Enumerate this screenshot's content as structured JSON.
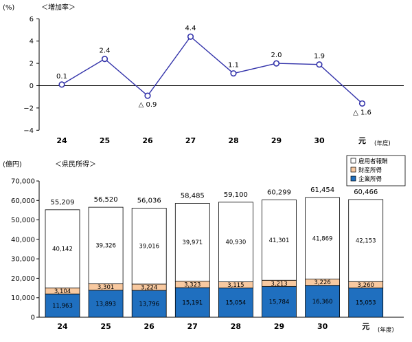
{
  "chart_data": [
    {
      "type": "line",
      "title": "＜増加率＞",
      "ylabel": "(%)",
      "xlabel": "(年度)",
      "categories": [
        "24",
        "25",
        "26",
        "27",
        "28",
        "29",
        "30",
        "元"
      ],
      "values": [
        0.1,
        2.4,
        -0.9,
        4.4,
        1.1,
        2.0,
        1.9,
        -1.6
      ],
      "value_labels": [
        "0.1",
        "2.4",
        "△ 0.9",
        "4.4",
        "1.1",
        "2.0",
        "1.9",
        "△ 1.6"
      ],
      "ylim": [
        -4,
        6
      ],
      "yticks": [
        "−4",
        "−2",
        "0",
        "2",
        "4",
        "6"
      ],
      "grid": false,
      "colors": {
        "line": "#3333aa",
        "marker": "#3333aa"
      }
    },
    {
      "type": "bar",
      "stacked": true,
      "title": "＜県民所得＞",
      "ylabel": "(億円)",
      "xlabel": "(年度)",
      "categories": [
        "24",
        "25",
        "26",
        "27",
        "28",
        "29",
        "30",
        "元"
      ],
      "ylim": [
        0,
        70000
      ],
      "yticks": [
        "0",
        "10,000",
        "20,000",
        "30,000",
        "40,000",
        "50,000",
        "60,000",
        "70,000"
      ],
      "totals": [
        55209,
        56520,
        56036,
        58485,
        59100,
        60299,
        61454,
        60466
      ],
      "total_labels": [
        "55,209",
        "56,520",
        "56,036",
        "58,485",
        "59,100",
        "60,299",
        "61,454",
        "60,466"
      ],
      "series": [
        {
          "name": "企業所得",
          "color": "#1f6fbf",
          "values": [
            11963,
            13893,
            13796,
            15191,
            15054,
            15784,
            16360,
            15053
          ],
          "labels": [
            "11,963",
            "13,893",
            "13,796",
            "15,191",
            "15,054",
            "15,784",
            "16,360",
            "15,053"
          ]
        },
        {
          "name": "財産所得",
          "color": "#f8c9a0",
          "values": [
            3104,
            3301,
            3224,
            3323,
            3115,
            3213,
            3226,
            3260
          ],
          "labels": [
            "3,104",
            "3,301",
            "3,224",
            "3,323",
            "3,115",
            "3,213",
            "3,226",
            "3,260"
          ]
        },
        {
          "name": "雇用者報酬",
          "color": "#ffffff",
          "values": [
            40142,
            39326,
            39016,
            39971,
            40930,
            41301,
            41869,
            42153
          ],
          "labels": [
            "40,142",
            "39,326",
            "39,016",
            "39,971",
            "40,930",
            "41,301",
            "41,869",
            "42,153"
          ]
        }
      ],
      "legend": {
        "placement": "top-right",
        "order": [
          "雇用者報酬",
          "財産所得",
          "企業所得"
        ]
      }
    }
  ]
}
